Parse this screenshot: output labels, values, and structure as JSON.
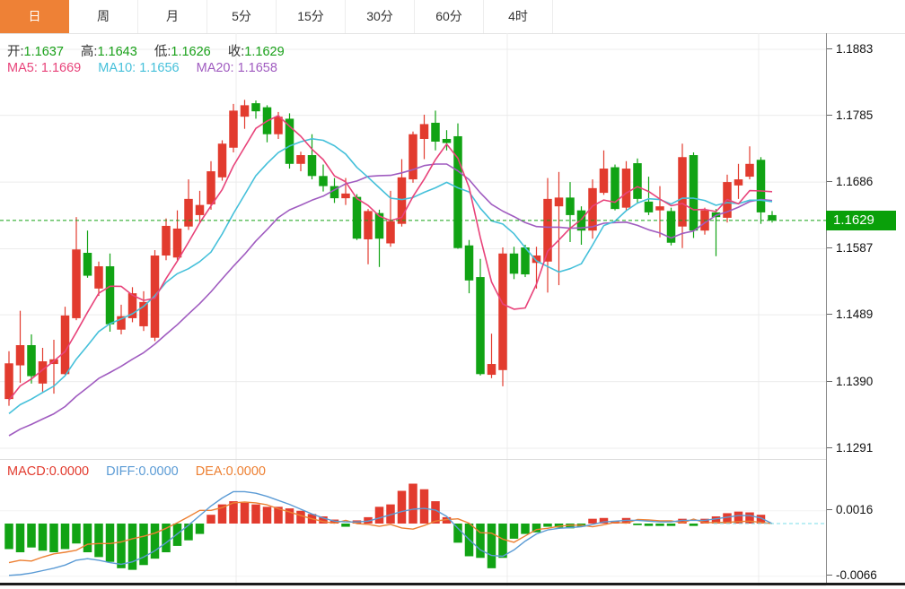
{
  "tabs": {
    "items": [
      {
        "label": "日",
        "active": true
      },
      {
        "label": "周",
        "active": false
      },
      {
        "label": "月",
        "active": false
      },
      {
        "label": "5分",
        "active": false
      },
      {
        "label": "15分",
        "active": false
      },
      {
        "label": "30分",
        "active": false
      },
      {
        "label": "60分",
        "active": false
      },
      {
        "label": "4时",
        "active": false
      }
    ]
  },
  "main_legend": {
    "ohlc": [
      {
        "label": "开:",
        "value": "1.1637"
      },
      {
        "label": "高:",
        "value": "1.1643"
      },
      {
        "label": "低:",
        "value": "1.1626"
      },
      {
        "label": "收:",
        "value": "1.1629"
      }
    ],
    "ma": [
      {
        "label": "MA5:",
        "value": "1.1669"
      },
      {
        "label": "MA10:",
        "value": "1.1656"
      },
      {
        "label": "MA20:",
        "value": "1.1658"
      }
    ]
  },
  "macd_legend": [
    {
      "label": "MACD:",
      "value": "0.0000"
    },
    {
      "label": "DIFF:",
      "value": "0.0000"
    },
    {
      "label": "DEA:",
      "value": "0.0000"
    }
  ],
  "price_badge": "1.1629",
  "axes": {
    "main_ticks": [
      "1.1883",
      "1.1785",
      "1.1686",
      "1.1587",
      "1.1489",
      "1.1390",
      "1.1291"
    ],
    "macd_ticks": [
      "0.0016",
      "-0.0066"
    ]
  },
  "colors": {
    "up": "#e23b2e",
    "down": "#11a314",
    "ma5": "#e8437a",
    "ma10": "#45c0da",
    "ma20": "#a05cc0",
    "diff": "#5b9bd5",
    "dea": "#ed8033",
    "price_line": "#15a015",
    "badge": "#0aa00a",
    "tab_accent": "#ee8136",
    "grid": "#ececec"
  },
  "chart_data": {
    "type": "candlestick",
    "timeframe": "日",
    "title": "",
    "price_axis": {
      "min": 1.1291,
      "max": 1.1883,
      "ticks": [
        1.1883,
        1.1785,
        1.1686,
        1.1587,
        1.1489,
        1.139,
        1.1291
      ]
    },
    "current_price": 1.1629,
    "ohlc_display": {
      "open": 1.1637,
      "high": 1.1643,
      "low": 1.1626,
      "close": 1.1629
    },
    "ma": {
      "periods": [
        5,
        10,
        20
      ],
      "display_values": {
        "ma5": 1.1669,
        "ma10": 1.1656,
        "ma20": 1.1658
      }
    },
    "candles": [
      [
        1.1364,
        1.1435,
        1.1354,
        1.1417
      ],
      [
        1.1414,
        1.1495,
        1.1388,
        1.1444
      ],
      [
        1.1444,
        1.146,
        1.1387,
        1.1398
      ],
      [
        1.1387,
        1.144,
        1.1375,
        1.142
      ],
      [
        1.1416,
        1.1452,
        1.1372,
        1.1423
      ],
      [
        1.1401,
        1.1501,
        1.14,
        1.1488
      ],
      [
        1.1484,
        1.1634,
        1.1481,
        1.1586
      ],
      [
        1.1581,
        1.1614,
        1.1544,
        1.1547
      ],
      [
        1.1528,
        1.1568,
        1.1517,
        1.1561
      ],
      [
        1.1561,
        1.158,
        1.1464,
        1.1475
      ],
      [
        1.1467,
        1.1504,
        1.146,
        1.1487
      ],
      [
        1.1484,
        1.153,
        1.1478,
        1.1521
      ],
      [
        1.1472,
        1.1524,
        1.1465,
        1.1508
      ],
      [
        1.1455,
        1.1585,
        1.145,
        1.1577
      ],
      [
        1.1577,
        1.1632,
        1.157,
        1.1621
      ],
      [
        1.1574,
        1.1644,
        1.157,
        1.1617
      ],
      [
        1.162,
        1.169,
        1.1615,
        1.1661
      ],
      [
        1.1637,
        1.1673,
        1.1627,
        1.1652
      ],
      [
        1.1653,
        1.1717,
        1.1645,
        1.1702
      ],
      [
        1.1693,
        1.1748,
        1.1688,
        1.1743
      ],
      [
        1.1737,
        1.1802,
        1.173,
        1.1792
      ],
      [
        1.1783,
        1.1808,
        1.1765,
        1.18
      ],
      [
        1.1803,
        1.1807,
        1.178,
        1.1791
      ],
      [
        1.1797,
        1.18,
        1.1745,
        1.1757
      ],
      [
        1.1757,
        1.179,
        1.175,
        1.1783
      ],
      [
        1.178,
        1.1788,
        1.1706,
        1.1713
      ],
      [
        1.1713,
        1.1731,
        1.1702,
        1.1726
      ],
      [
        1.1726,
        1.1757,
        1.169,
        1.1695
      ],
      [
        1.1695,
        1.1712,
        1.1672,
        1.168
      ],
      [
        1.168,
        1.1692,
        1.1655,
        1.1662
      ],
      [
        1.1662,
        1.1692,
        1.1652,
        1.1669
      ],
      [
        1.1664,
        1.1668,
        1.16,
        1.1602
      ],
      [
        1.1601,
        1.1646,
        1.1564,
        1.1643
      ],
      [
        1.164,
        1.1645,
        1.156,
        1.1602
      ],
      [
        1.1595,
        1.1673,
        1.159,
        1.1628
      ],
      [
        1.1624,
        1.172,
        1.162,
        1.1693
      ],
      [
        1.169,
        1.1761,
        1.1685,
        1.1757
      ],
      [
        1.175,
        1.1786,
        1.172,
        1.1772
      ],
      [
        1.1774,
        1.1792,
        1.1733,
        1.1746
      ],
      [
        1.175,
        1.1763,
        1.1733,
        1.1744
      ],
      [
        1.1754,
        1.1773,
        1.1587,
        1.1588
      ],
      [
        1.1592,
        1.16,
        1.1521,
        1.154
      ],
      [
        1.1545,
        1.1572,
        1.1399,
        1.1401
      ],
      [
        1.14,
        1.1461,
        1.1395,
        1.1416
      ],
      [
        1.1407,
        1.1589,
        1.1383,
        1.158
      ],
      [
        1.158,
        1.159,
        1.1542,
        1.155
      ],
      [
        1.1589,
        1.1593,
        1.1545,
        1.1549
      ],
      [
        1.1566,
        1.159,
        1.1528,
        1.1577
      ],
      [
        1.1568,
        1.1692,
        1.1522,
        1.1661
      ],
      [
        1.165,
        1.1701,
        1.1533,
        1.1663
      ],
      [
        1.1663,
        1.1686,
        1.1597,
        1.1637
      ],
      [
        1.1644,
        1.165,
        1.1593,
        1.1614
      ],
      [
        1.1614,
        1.169,
        1.1602,
        1.1677
      ],
      [
        1.167,
        1.1733,
        1.1667,
        1.1706
      ],
      [
        1.1708,
        1.1712,
        1.1644,
        1.1646
      ],
      [
        1.1648,
        1.1717,
        1.1644,
        1.1706
      ],
      [
        1.1714,
        1.1721,
        1.1654,
        1.1661
      ],
      [
        1.1657,
        1.1694,
        1.1637,
        1.1641
      ],
      [
        1.1644,
        1.168,
        1.1604,
        1.165
      ],
      [
        1.1643,
        1.1648,
        1.1592,
        1.1596
      ],
      [
        1.162,
        1.1743,
        1.1588,
        1.1723
      ],
      [
        1.1726,
        1.173,
        1.1603,
        1.1614
      ],
      [
        1.1614,
        1.1648,
        1.1608,
        1.1644
      ],
      [
        1.1641,
        1.1646,
        1.1576,
        1.1634
      ],
      [
        1.1633,
        1.1697,
        1.1626,
        1.1686
      ],
      [
        1.1681,
        1.1713,
        1.1661,
        1.169
      ],
      [
        1.1694,
        1.1739,
        1.169,
        1.1713
      ],
      [
        1.1719,
        1.1723,
        1.1624,
        1.1641
      ],
      [
        1.1637,
        1.1643,
        1.1626,
        1.1629
      ]
    ],
    "macd": {
      "display_values": {
        "macd": 0.0,
        "diff": 0.0,
        "dea": 0.0
      },
      "axis_ticks": [
        0.0016,
        -0.0066
      ],
      "hist": [
        -0.0032,
        -0.0036,
        -0.003,
        -0.0034,
        -0.0036,
        -0.0032,
        -0.0025,
        -0.0036,
        -0.0042,
        -0.0048,
        -0.0056,
        -0.0058,
        -0.0052,
        -0.0044,
        -0.0036,
        -0.0028,
        -0.0021,
        -0.0013,
        0.0011,
        0.0024,
        0.0028,
        0.0026,
        0.0024,
        0.0021,
        0.0021,
        0.0019,
        0.0016,
        0.0012,
        0.0009,
        0.0005,
        -0.0004,
        0.0004,
        0.0008,
        0.0021,
        0.0024,
        0.0041,
        0.005,
        0.0043,
        0.0028,
        0.0008,
        -0.0024,
        -0.0041,
        -0.0043,
        -0.0056,
        -0.0043,
        -0.0019,
        -0.0013,
        -0.0011,
        -0.0004,
        -0.0005,
        -0.0006,
        -0.0004,
        0.0006,
        0.0007,
        0.0003,
        0.0007,
        -0.0002,
        -0.0003,
        -0.0003,
        -0.0003,
        0.0006,
        -0.0003,
        0.0006,
        0.0009,
        0.0013,
        0.0015,
        0.0014,
        0.0011,
        0.0
      ],
      "diff": [
        -0.0065,
        -0.0064,
        -0.0062,
        -0.0059,
        -0.0056,
        -0.0052,
        -0.0046,
        -0.0044,
        -0.0046,
        -0.0049,
        -0.0051,
        -0.0048,
        -0.0042,
        -0.0034,
        -0.0024,
        -0.0013,
        -0.0002,
        0.001,
        0.0022,
        0.0032,
        0.004,
        0.004,
        0.0038,
        0.0034,
        0.0029,
        0.0024,
        0.0018,
        0.0012,
        0.0007,
        0.0003,
        0.0002,
        0.0002,
        0.0003,
        0.0007,
        0.0011,
        0.0015,
        0.0018,
        0.0019,
        0.0017,
        0.0009,
        -0.0006,
        -0.002,
        -0.0033,
        -0.004,
        -0.0041,
        -0.0033,
        -0.0022,
        -0.0013,
        -0.0008,
        -0.0006,
        -0.0005,
        -0.0004,
        -0.0001,
        0.0002,
        0.0003,
        0.0004,
        0.0004,
        0.0003,
        0.0002,
        0.0002,
        0.0004,
        0.0004,
        0.0004,
        0.0006,
        0.0008,
        0.001,
        0.001,
        0.0007,
        0.0
      ]
    }
  }
}
